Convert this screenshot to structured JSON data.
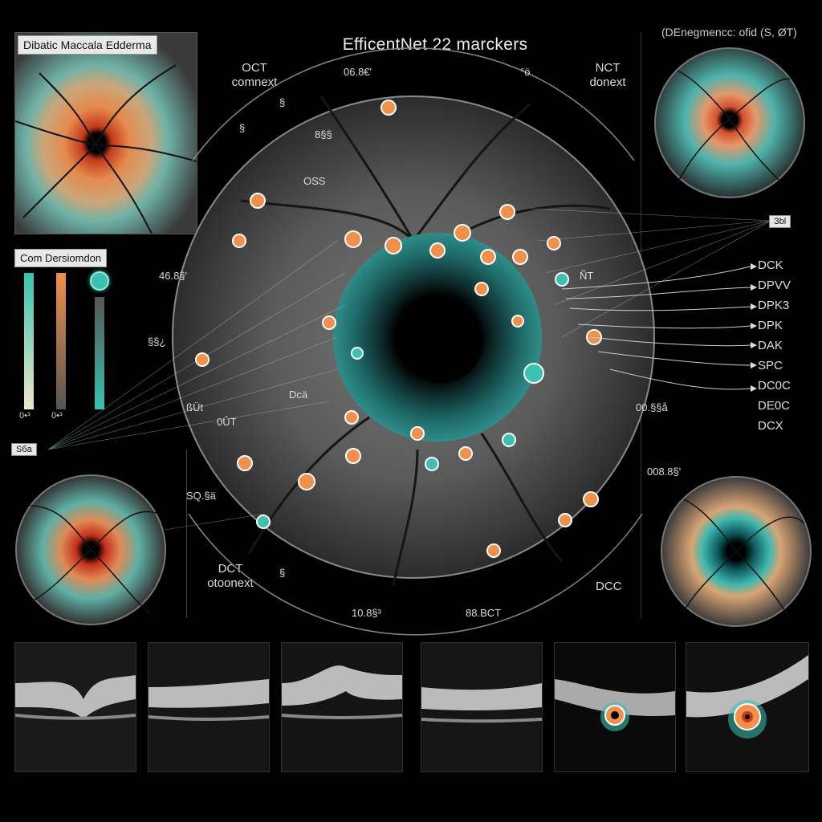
{
  "title": "EfficentNet 22 marckers",
  "top_right_note": "(DEnegmencc: ofid (S, ØT)",
  "panels": {
    "top_left_label": "Dibatic Maccala Edderma",
    "color_legend_label": "Com Dersiomdon",
    "left_tag": "Sбa",
    "right_tag": "Зbl"
  },
  "context_labels": {
    "top_left": [
      "OCT",
      "comnext"
    ],
    "top_right": [
      "NCT",
      "donext"
    ],
    "bottom_left": [
      "DCT",
      "otoonext"
    ],
    "bottom_right": "DCC"
  },
  "readouts": {
    "top_center": "06.8€'",
    "top_center_right": "°ö",
    "left_upper": "46.8§'",
    "ring_top": "8§§",
    "ring_left": "OSS",
    "left_mid": "§§¿",
    "center_left": "ßÜt",
    "left_lower": "0ÛT",
    "center_small": "Dcä",
    "bottom_left": "SQ.§ä",
    "right_mid": "00.§§å",
    "right_lower": "008.8§'",
    "bottom_center_left": "10.8§³",
    "bottom_center_right": "88.BCT",
    "nct_label": "ÑT",
    "glyph_left": "§",
    "glyph_top_left": "§",
    "glyph_small": "§"
  },
  "colorbars": {
    "labels": [
      "0•³",
      "0•³"
    ]
  },
  "legend": [
    "DCK",
    "DPVV",
    "DPK3",
    "DPK",
    "DAK",
    "SPC",
    "DC0C",
    "DE0C",
    "DCX"
  ],
  "colors": {
    "teal": "#39c2b0",
    "orange": "#f0904a",
    "red": "#d8432a",
    "background": "#000000"
  }
}
